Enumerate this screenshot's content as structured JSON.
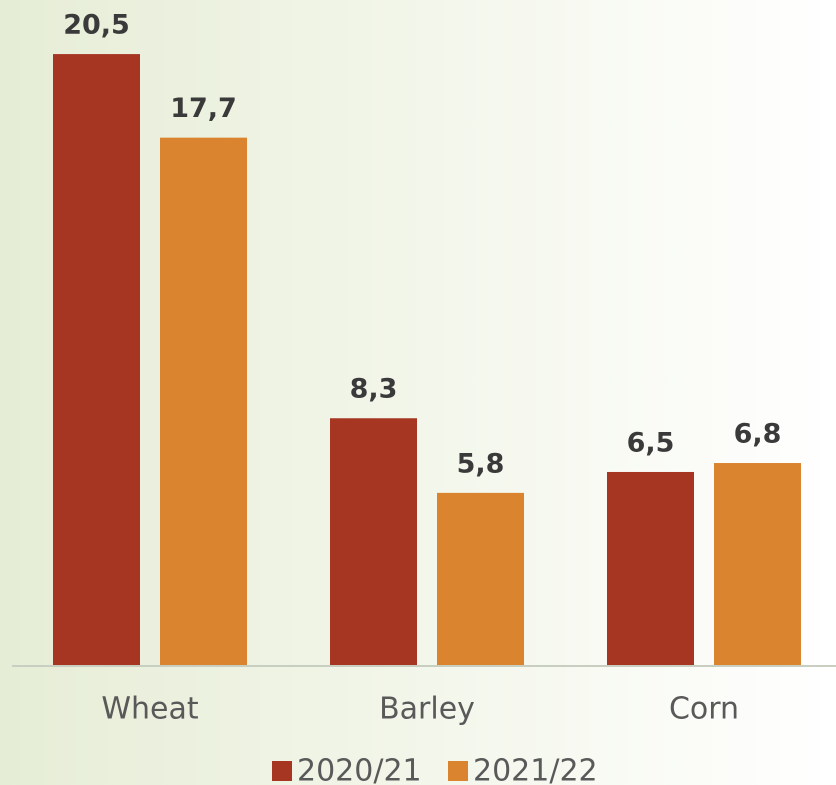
{
  "chart_data": {
    "type": "bar",
    "categories": [
      "Wheat",
      "Barley",
      "Corn"
    ],
    "series": [
      {
        "name": "2020/21",
        "color": "#a63622",
        "values": [
          20.5,
          8.3,
          6.5
        ],
        "value_labels": [
          "20,5",
          "8,3",
          "6,5"
        ]
      },
      {
        "name": "2021/22",
        "color": "#da8430",
        "values": [
          17.7,
          5.8,
          6.8
        ],
        "value_labels": [
          "17,7",
          "5,8",
          "6,8"
        ]
      }
    ],
    "legend": "bottom"
  }
}
